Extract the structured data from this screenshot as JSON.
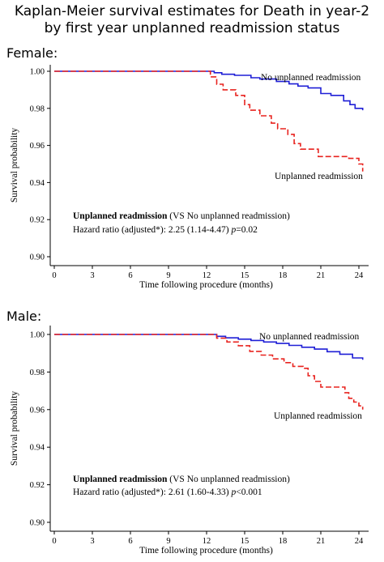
{
  "title": {
    "line1": "Kaplan-Meier survival estimates for Death in year-2",
    "line2": "by first year unplanned readmission status"
  },
  "colors": {
    "no_readmission": "#1f1fd6",
    "readmission": "#e8231f",
    "axis": "#000000"
  },
  "chart_data": [
    {
      "panel_label": "Female:",
      "type": "line",
      "xlabel": "Time following procedure (months)",
      "ylabel": "Survival probability",
      "xlim": [
        0,
        24
      ],
      "ylim": [
        0.9,
        1.0
      ],
      "xticks": [
        "0",
        "3",
        "6",
        "9",
        "12",
        "15",
        "18",
        "21",
        "24"
      ],
      "yticks": [
        "0.90",
        "0.92",
        "0.94",
        "0.96",
        "0.98",
        "1.00"
      ],
      "annotation": {
        "bold": "Unplanned readmission",
        "rest": " (VS No unplanned readmission)",
        "hr_text": "Hazard ratio (adjusted*): 2.25 (1.14-4.47) ",
        "p_symbol": "p",
        "p_value": "=0.02"
      },
      "series": [
        {
          "name": "No unplanned readmission",
          "style": "solid",
          "points": [
            [
              0,
              1.0
            ],
            [
              12.2,
              1.0
            ],
            [
              12.6,
              0.9992
            ],
            [
              13.2,
              0.9984
            ],
            [
              14.2,
              0.9978
            ],
            [
              15.5,
              0.9965
            ],
            [
              16.2,
              0.9958
            ],
            [
              17.5,
              0.9945
            ],
            [
              18.5,
              0.9932
            ],
            [
              19.2,
              0.992
            ],
            [
              20,
              0.991
            ],
            [
              21,
              0.988
            ],
            [
              21.8,
              0.987
            ],
            [
              22.8,
              0.984
            ],
            [
              23.3,
              0.982
            ],
            [
              23.7,
              0.98
            ],
            [
              24.3,
              0.979
            ]
          ]
        },
        {
          "name": "Unplanned readmission",
          "style": "dashed",
          "points": [
            [
              0,
              1.0
            ],
            [
              12,
              1.0
            ],
            [
              12.3,
              0.997
            ],
            [
              12.8,
              0.993
            ],
            [
              13.3,
              0.99
            ],
            [
              14.3,
              0.987
            ],
            [
              15.0,
              0.982
            ],
            [
              15.4,
              0.979
            ],
            [
              16.2,
              0.976
            ],
            [
              17.1,
              0.972
            ],
            [
              17.6,
              0.969
            ],
            [
              18.4,
              0.966
            ],
            [
              18.9,
              0.961
            ],
            [
              19.4,
              0.958
            ],
            [
              20.8,
              0.954
            ],
            [
              22.7,
              0.954
            ],
            [
              23.2,
              0.953
            ],
            [
              24.0,
              0.95
            ],
            [
              24.3,
              0.946
            ]
          ]
        }
      ]
    },
    {
      "panel_label": "Male:",
      "type": "line",
      "xlabel": "Time following procedure (months)",
      "ylabel": "Survival probability",
      "xlim": [
        0,
        24
      ],
      "ylim": [
        0.9,
        1.0
      ],
      "xticks": [
        "0",
        "3",
        "6",
        "9",
        "12",
        "15",
        "18",
        "21",
        "24"
      ],
      "yticks": [
        "0.90",
        "0.92",
        "0.94",
        "0.96",
        "0.98",
        "1.00"
      ],
      "annotation": {
        "bold": "Unplanned readmission",
        "rest": " (VS No unplanned readmission)",
        "hr_text": "Hazard ratio (adjusted*): 2.61 (1.60-4.33) ",
        "p_symbol": "p",
        "p_value": "<0.001"
      },
      "series": [
        {
          "name": "No unplanned readmission",
          "style": "solid",
          "points": [
            [
              0,
              1.0
            ],
            [
              12.2,
              1.0
            ],
            [
              12.8,
              0.999
            ],
            [
              13.5,
              0.9982
            ],
            [
              14.5,
              0.9975
            ],
            [
              15.5,
              0.9968
            ],
            [
              16.5,
              0.996
            ],
            [
              17.5,
              0.9952
            ],
            [
              18.5,
              0.9942
            ],
            [
              19.5,
              0.9932
            ],
            [
              20.5,
              0.9922
            ],
            [
              21.5,
              0.9908
            ],
            [
              22.5,
              0.9895
            ],
            [
              23.5,
              0.9875
            ],
            [
              24.3,
              0.9865
            ]
          ]
        },
        {
          "name": "Unplanned readmission",
          "style": "dashed",
          "points": [
            [
              0,
              1.0
            ],
            [
              12.0,
              1.0
            ],
            [
              12.8,
              0.998
            ],
            [
              13.6,
              0.996
            ],
            [
              14.5,
              0.994
            ],
            [
              15.4,
              0.991
            ],
            [
              16.3,
              0.989
            ],
            [
              17.2,
              0.987
            ],
            [
              18.1,
              0.985
            ],
            [
              18.8,
              0.983
            ],
            [
              19.6,
              0.982
            ],
            [
              20.0,
              0.978
            ],
            [
              20.5,
              0.975
            ],
            [
              21.0,
              0.972
            ],
            [
              22.5,
              0.972
            ],
            [
              22.9,
              0.969
            ],
            [
              23.2,
              0.966
            ],
            [
              23.6,
              0.964
            ],
            [
              24.0,
              0.962
            ],
            [
              24.3,
              0.96
            ]
          ]
        }
      ]
    }
  ]
}
